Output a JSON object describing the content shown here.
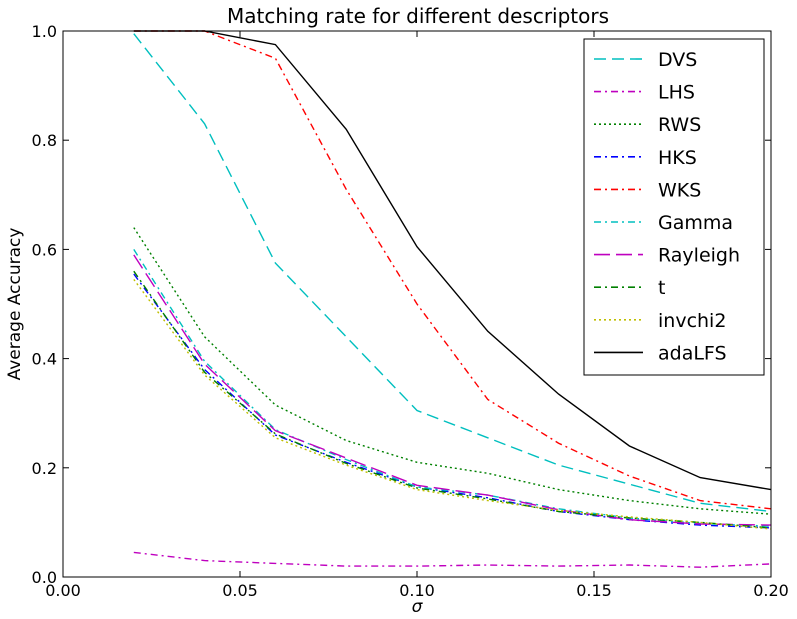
{
  "chart_data": {
    "type": "line",
    "title": "Matching rate for different descriptors",
    "xlabel": "σ",
    "ylabel": "Average Accuracy",
    "xlim": [
      0.0,
      0.2
    ],
    "ylim": [
      0.0,
      1.0
    ],
    "x_ticks": [
      0.0,
      0.05,
      0.1,
      0.15,
      0.2
    ],
    "x_tick_labels": [
      "0.00",
      "0.05",
      "0.10",
      "0.15",
      "0.20"
    ],
    "y_ticks": [
      0.0,
      0.2,
      0.4,
      0.6,
      0.8,
      1.0
    ],
    "y_tick_labels": [
      "0.0",
      "0.2",
      "0.4",
      "0.6",
      "0.8",
      "1.0"
    ],
    "grid": false,
    "legend_position": "top-right",
    "x": [
      0.02,
      0.04,
      0.06,
      0.08,
      0.1,
      0.12,
      0.14,
      0.16,
      0.18,
      0.2
    ],
    "series": [
      {
        "name": "DVS",
        "color": "#00bfbf",
        "dash": "dashed",
        "values": [
          0.995,
          0.83,
          0.575,
          0.44,
          0.305,
          0.255,
          0.205,
          0.17,
          0.135,
          0.12
        ]
      },
      {
        "name": "LHS",
        "color": "#bf00bf",
        "dash": "dashdot",
        "values": [
          0.045,
          0.03,
          0.025,
          0.02,
          0.02,
          0.022,
          0.02,
          0.022,
          0.018,
          0.024
        ]
      },
      {
        "name": "RWS",
        "color": "#008000",
        "dash": "dotted",
        "values": [
          0.64,
          0.44,
          0.315,
          0.25,
          0.21,
          0.19,
          0.16,
          0.14,
          0.125,
          0.115
        ]
      },
      {
        "name": "HKS",
        "color": "#0000ff",
        "dash": "dashdot",
        "values": [
          0.555,
          0.38,
          0.26,
          0.21,
          0.165,
          0.145,
          0.12,
          0.105,
          0.095,
          0.09
        ]
      },
      {
        "name": "WKS",
        "color": "#ff0000",
        "dash": "dashdot",
        "values": [
          1.0,
          1.0,
          0.95,
          0.71,
          0.5,
          0.325,
          0.245,
          0.185,
          0.14,
          0.125
        ]
      },
      {
        "name": "Gamma",
        "color": "#00bfbf",
        "dash": "dashdot",
        "values": [
          0.6,
          0.395,
          0.27,
          0.215,
          0.165,
          0.15,
          0.125,
          0.108,
          0.098,
          0.093
        ]
      },
      {
        "name": "Rayleigh",
        "color": "#bf00bf",
        "dash": "longdash",
        "values": [
          0.59,
          0.39,
          0.268,
          0.218,
          0.168,
          0.15,
          0.123,
          0.105,
          0.097,
          0.095
        ]
      },
      {
        "name": "t",
        "color": "#008000",
        "dash": "dashdot",
        "values": [
          0.56,
          0.375,
          0.262,
          0.208,
          0.163,
          0.143,
          0.12,
          0.108,
          0.1,
          0.09
        ]
      },
      {
        "name": "invchi2",
        "color": "#bfbf00",
        "dash": "dotted",
        "values": [
          0.545,
          0.37,
          0.255,
          0.205,
          0.16,
          0.14,
          0.122,
          0.11,
          0.1,
          0.088
        ]
      },
      {
        "name": "adaLFS",
        "color": "#000000",
        "dash": "solid",
        "values": [
          1.0,
          1.0,
          0.975,
          0.82,
          0.605,
          0.45,
          0.335,
          0.24,
          0.182,
          0.16
        ]
      }
    ]
  }
}
